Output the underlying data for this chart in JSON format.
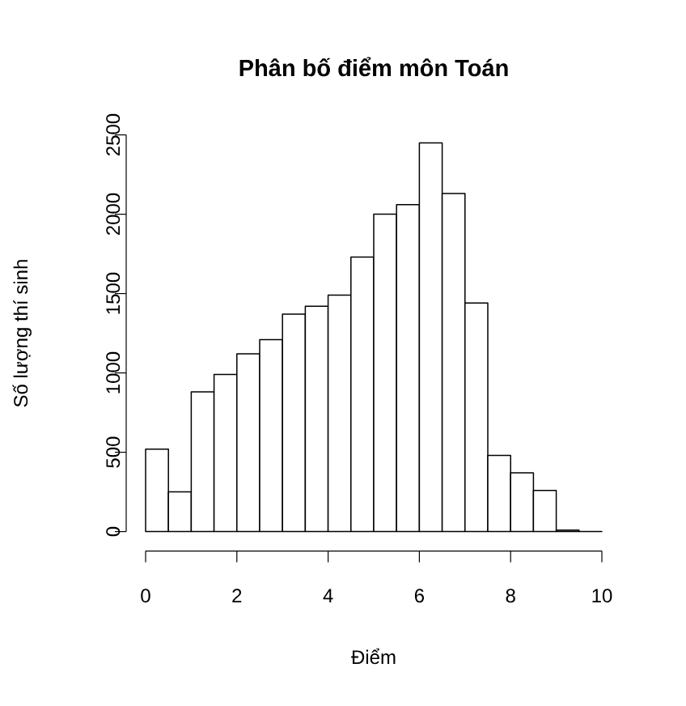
{
  "chart_data": {
    "type": "histogram",
    "title": "**Phân bố điểm môn Toán**",
    "xlabel": "Điểm",
    "ylabel": "Số lượng thí sinh",
    "bins": [
      0,
      0.5,
      1,
      1.5,
      2,
      2.5,
      3,
      3.5,
      4,
      4.5,
      5,
      5.5,
      6,
      6.5,
      7,
      7.5,
      8,
      8.5,
      9,
      9.5,
      10
    ],
    "values": [
      520,
      250,
      880,
      990,
      1120,
      1210,
      1370,
      1420,
      1490,
      1730,
      2000,
      2060,
      2450,
      2130,
      1440,
      480,
      370,
      260,
      10,
      0
    ],
    "color": "#ffffff",
    "xlim": [
      0,
      10
    ],
    "ylim": [
      0,
      2500
    ],
    "xticks": [
      0,
      2,
      4,
      6,
      8,
      10
    ],
    "yticks": [
      0,
      500,
      1000,
      1500,
      2000,
      2500
    ]
  }
}
